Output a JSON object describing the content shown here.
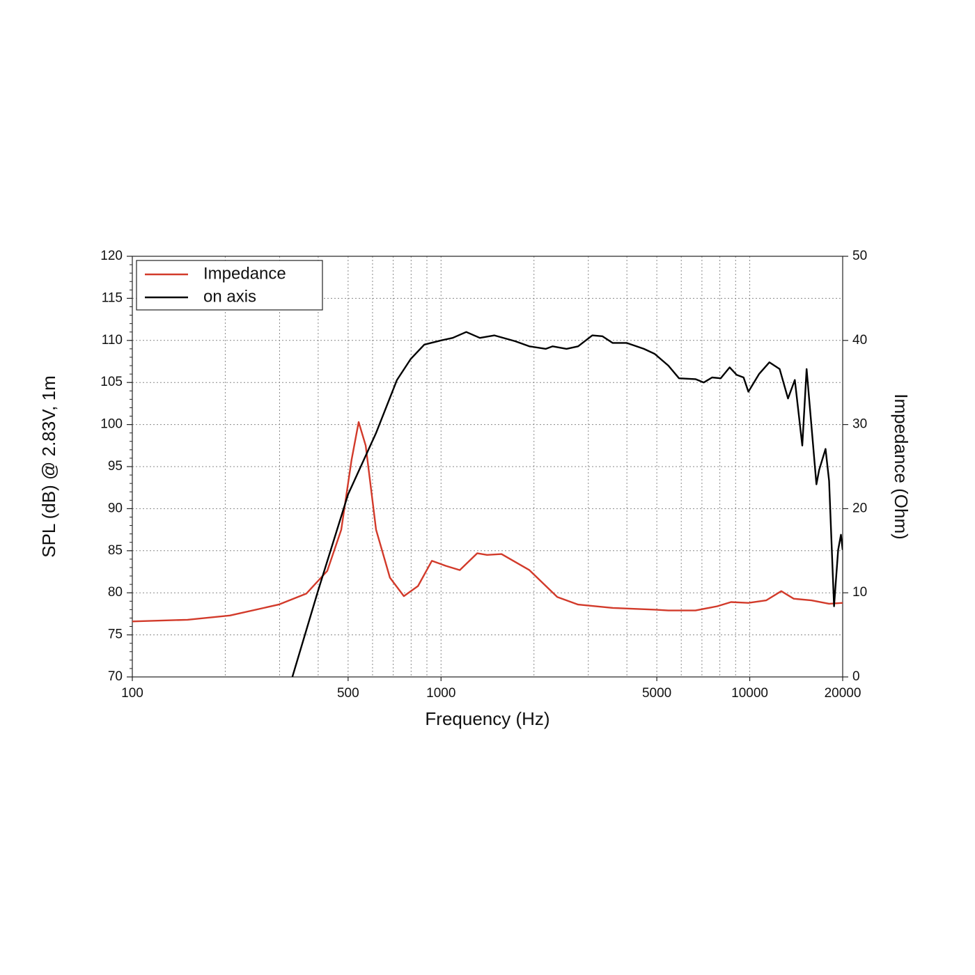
{
  "chart_data": {
    "type": "line",
    "xlabel": "Frequency (Hz)",
    "ylabel": "SPL (dB) @ 2.83V, 1m",
    "y2label": "Impedance (Ohm)",
    "xscale": "log",
    "xlim": [
      100,
      20000
    ],
    "xticks": [
      100,
      500,
      1000,
      5000,
      10000,
      20000
    ],
    "xgrid": [
      200,
      300,
      400,
      500,
      600,
      700,
      800,
      900,
      1000,
      2000,
      3000,
      4000,
      5000,
      6000,
      7000,
      8000,
      9000,
      10000
    ],
    "ylim": [
      70,
      120
    ],
    "yticks": [
      70,
      75,
      80,
      85,
      90,
      95,
      100,
      105,
      110,
      115,
      120
    ],
    "y2lim": [
      0,
      50
    ],
    "y2ticks": [
      0,
      10,
      20,
      30,
      40,
      50
    ],
    "grid": true,
    "legend": "upper left",
    "series": [
      {
        "name": "Impedance",
        "color": "#d23a2a",
        "axis": "y2",
        "x": [
          100,
          151,
          207,
          298,
          366,
          428,
          475,
          513,
          541,
          570,
          616,
          683,
          758,
          842,
          934,
          1036,
          1150,
          1310,
          1410,
          1570,
          1932,
          2380,
          2780,
          3600,
          4930,
          5450,
          6670,
          7850,
          8700,
          9900,
          11300,
          12650,
          13880,
          15850,
          18070,
          20000
        ],
        "values": [
          6.6,
          6.8,
          7.3,
          8.6,
          9.9,
          12.6,
          17.5,
          25.8,
          30.3,
          27.5,
          17.5,
          11.8,
          9.6,
          10.8,
          13.8,
          13.2,
          12.7,
          14.7,
          14.5,
          14.6,
          12.7,
          9.5,
          8.6,
          8.2,
          8.0,
          7.9,
          7.9,
          8.4,
          8.9,
          8.8,
          9.1,
          10.2,
          9.3,
          9.1,
          8.7,
          8.8
        ]
      },
      {
        "name": "on axis",
        "color": "#000000",
        "x": [
          330,
          400,
          500,
          616,
          720,
          798,
          883,
          1000,
          1091,
          1207,
          1336,
          1490,
          1740,
          1932,
          2186,
          2300,
          2550,
          2780,
          3090,
          3330,
          3595,
          3990,
          4540,
          4920,
          5450,
          5900,
          6670,
          7100,
          7550,
          8050,
          8610,
          9070,
          9550,
          9900,
          10720,
          11580,
          12500,
          13300,
          14000,
          14800,
          15280,
          15850,
          16440,
          16780,
          17600,
          18070,
          18750,
          19340,
          19740,
          20000
        ],
        "values": [
          70,
          80.3,
          91.7,
          99,
          105.3,
          107.8,
          109.5,
          110,
          110.3,
          111,
          110.3,
          110.6,
          109.9,
          109.3,
          109,
          109.3,
          109,
          109.3,
          110.6,
          110.5,
          109.7,
          109.7,
          109,
          108.4,
          107,
          105.5,
          105.4,
          105,
          105.6,
          105.5,
          106.8,
          105.9,
          105.6,
          103.9,
          106,
          107.4,
          106.6,
          103.1,
          105.3,
          97.5,
          106.6,
          99.8,
          92.9,
          94.6,
          97.1,
          93.3,
          78.4,
          85.1,
          86.9,
          85.1
        ]
      }
    ]
  }
}
